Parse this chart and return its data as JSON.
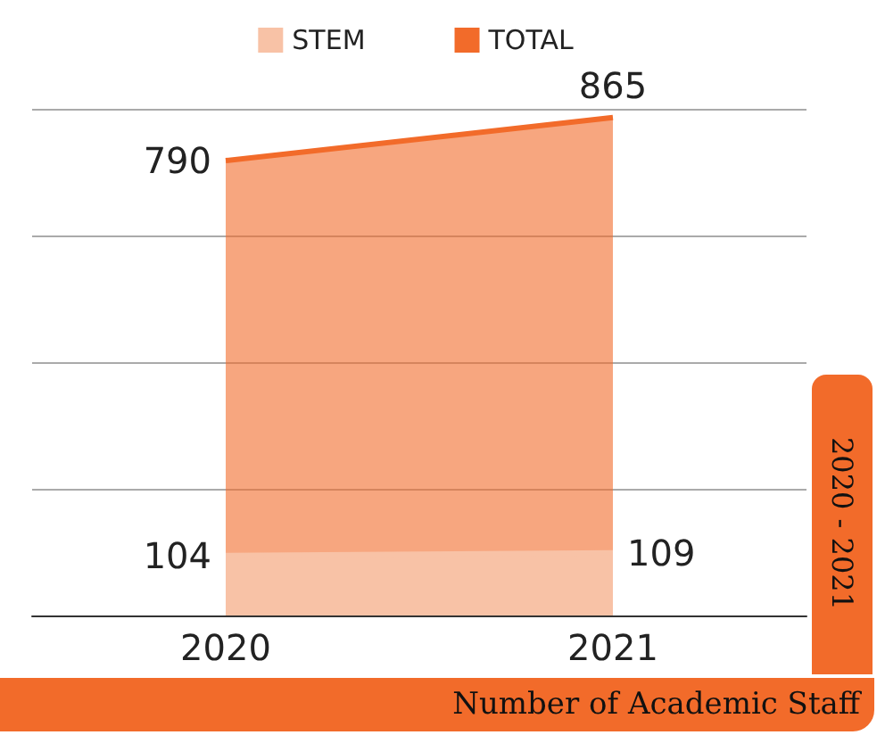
{
  "chart_data": {
    "type": "area",
    "title": "Number of Academic Staff",
    "subtitle": "2020 - 2021",
    "categories": [
      "2020",
      "2021"
    ],
    "series": [
      {
        "name": "STEM",
        "color": "#f8c2a6",
        "values": [
          104,
          109
        ]
      },
      {
        "name": "TOTAL",
        "color": "#f26b2a",
        "values": [
          790,
          865
        ]
      }
    ],
    "ylim": [
      0,
      880
    ],
    "yticks": [
      {
        "value": 0,
        "label": null
      },
      {
        "value": 220,
        "label": null
      },
      {
        "value": 440,
        "label": null
      },
      {
        "value": 660,
        "label": null
      },
      {
        "value": 880,
        "label": null
      }
    ],
    "tick_labels": "x",
    "grid": "y",
    "legend": "top",
    "marker": "none",
    "data_labels": true
  }
}
